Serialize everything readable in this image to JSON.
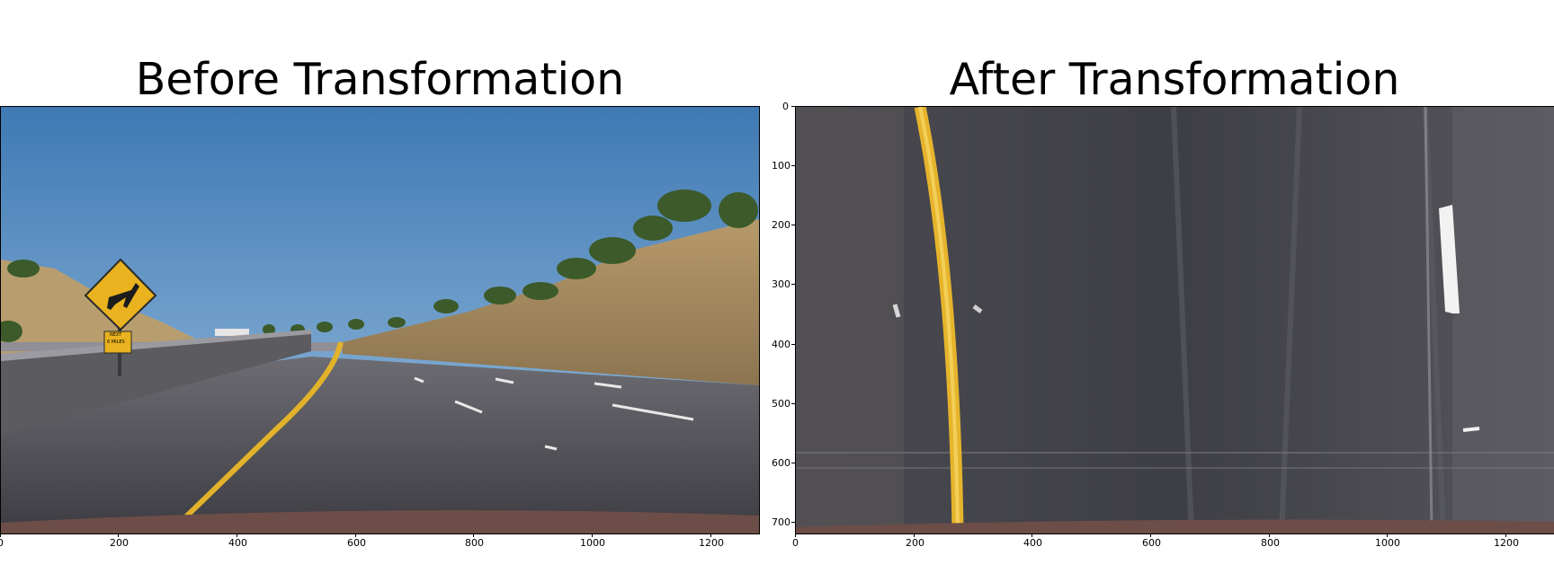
{
  "figure": {
    "left_title": "Before Transformation",
    "right_title": "After Transformation"
  },
  "left_panel": {
    "x_ticks": [
      "0",
      "200",
      "400",
      "600",
      "800",
      "1000",
      "1200"
    ]
  },
  "right_panel": {
    "x_ticks": [
      "0",
      "200",
      "400",
      "600",
      "800",
      "1000",
      "1200"
    ],
    "y_ticks": [
      "0",
      "100",
      "200",
      "300",
      "400",
      "500",
      "600",
      "700"
    ]
  },
  "sign": {
    "line1": "NEXT",
    "line2": "6 MILES"
  }
}
